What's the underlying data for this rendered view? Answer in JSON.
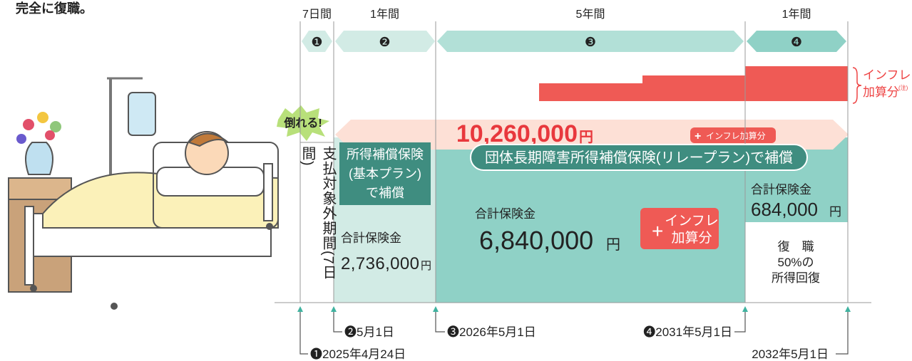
{
  "header": {
    "note": "完全に復職。"
  },
  "periods": [
    {
      "duration": "7日間",
      "number": "❶"
    },
    {
      "duration": "1年間",
      "number": "❷"
    },
    {
      "duration": "5年間",
      "number": "❸"
    },
    {
      "duration": "1年間",
      "number": "❹"
    }
  ],
  "inflation_note": {
    "line1": "インフレ",
    "line2": "加算分",
    "mark": "(注)"
  },
  "collapse": "倒れる!",
  "total": {
    "amount": "10,260,000",
    "unit": "円",
    "plus": "+",
    "addon": "インフレ加算分"
  },
  "non_payment": "支払対象外期間(7日間)",
  "basic_plan": {
    "title_lines": [
      "所得補償保険",
      "(基本プラン)",
      "で補償"
    ],
    "label": "合計保険金",
    "amount": "2,736,000",
    "unit": "円"
  },
  "relay_plan": {
    "title": "団体長期障害所得補償保険(リレープラン)で補償",
    "label": "合計保険金",
    "amount": "6,840,000",
    "unit": "円",
    "plus": "+",
    "addon_lines": [
      "インフレ",
      "加算分"
    ]
  },
  "return_period": {
    "label": "合計保険金",
    "amount": "684,000",
    "unit": "円",
    "status_lines": [
      "復　職",
      "50%の",
      "所得回復"
    ]
  },
  "dates": [
    "❶2025年4月24日",
    "❷5月1日",
    "❸2026年5月1日",
    "❹2031年5月1日",
    "2032年5月1日"
  ]
}
